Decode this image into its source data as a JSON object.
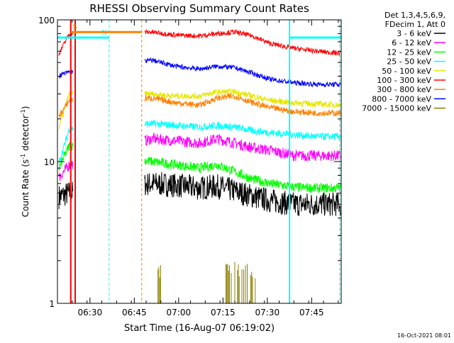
{
  "chart_data": {
    "type": "line",
    "title": "RHESSI Observing Summary Count Rates",
    "xlabel": "Start Time (16-Aug-07 06:19:02)",
    "ylabel": "Count Rate (s",
    "ylabel_sup": "-1",
    "ylabel_tail": " detector",
    "ylabel_close": ")",
    "x_unit": "minutes after 06:19:02",
    "xlim": [
      0,
      96
    ],
    "ylim": [
      1,
      100
    ],
    "yscale": "log",
    "x_ticks": [
      {
        "x": 11,
        "label": "06:30"
      },
      {
        "x": 26,
        "label": "06:45"
      },
      {
        "x": 41,
        "label": "07:00"
      },
      {
        "x": 56,
        "label": "07:15"
      },
      {
        "x": 71,
        "label": "07:30"
      },
      {
        "x": 86,
        "label": "07:45"
      }
    ],
    "y_ticks": [
      {
        "y": 1,
        "label": "1"
      },
      {
        "y": 10,
        "label": "10"
      },
      {
        "y": 100,
        "label": "100"
      }
    ],
    "legend": {
      "position": "right",
      "header": [
        "Det 1,3,4,5,6,9,",
        "FDecim 1, Att 0"
      ],
      "entries": [
        {
          "name": "3 - 6 keV",
          "color": "#000000"
        },
        {
          "name": "6 - 12 keV",
          "color": "#ff00ff"
        },
        {
          "name": "12 - 25 keV",
          "color": "#00ff00"
        },
        {
          "name": "25 - 50 keV",
          "color": "#00ffff"
        },
        {
          "name": "50 - 100 keV",
          "color": "#e6e600"
        },
        {
          "name": "100 - 300 keV",
          "color": "#ff0000"
        },
        {
          "name": "300 - 800 keV",
          "color": "#ff8000"
        },
        {
          "name": "800 - 7000 keV",
          "color": "#0000ff"
        },
        {
          "name": "7000 - 15000 keV",
          "color": "#8b8000"
        }
      ]
    },
    "series": [
      {
        "name": "3 - 6 keV",
        "color": "#000000",
        "points": [
          [
            0,
            5.6
          ],
          [
            4,
            6.0
          ],
          [
            32,
            7.0
          ],
          [
            40,
            6.8
          ],
          [
            48,
            6.5
          ],
          [
            54,
            6.7
          ],
          [
            60,
            6.2
          ],
          [
            66,
            5.7
          ],
          [
            72,
            5.3
          ],
          [
            80,
            5.0
          ],
          [
            88,
            5.0
          ],
          [
            96,
            5.0
          ]
        ],
        "noise": 0.2
      },
      {
        "name": "6 - 12 keV",
        "color": "#ff00ff",
        "points": [
          [
            0,
            7.5
          ],
          [
            4,
            9.5
          ],
          [
            32,
            14.5
          ],
          [
            40,
            14.0
          ],
          [
            48,
            13.5
          ],
          [
            54,
            14.5
          ],
          [
            60,
            13.5
          ],
          [
            66,
            12.5
          ],
          [
            72,
            12.0
          ],
          [
            80,
            11.0
          ],
          [
            88,
            11.0
          ],
          [
            96,
            11.0
          ]
        ],
        "noise": 0.09
      },
      {
        "name": "12 - 25 keV",
        "color": "#00ff00",
        "points": [
          [
            0,
            8.5
          ],
          [
            4,
            13.0
          ],
          [
            32,
            10.0
          ],
          [
            40,
            9.5
          ],
          [
            48,
            9.0
          ],
          [
            54,
            9.5
          ],
          [
            60,
            8.5
          ],
          [
            66,
            7.5
          ],
          [
            72,
            7.0
          ],
          [
            80,
            6.6
          ],
          [
            88,
            6.5
          ],
          [
            96,
            6.5
          ]
        ],
        "noise": 0.08
      },
      {
        "name": "25 - 50 keV",
        "color": "#00ffff",
        "points": [
          [
            0,
            9.0
          ],
          [
            4,
            17.0
          ],
          [
            32,
            18.5
          ],
          [
            40,
            18.0
          ],
          [
            48,
            17.5
          ],
          [
            54,
            18.0
          ],
          [
            60,
            17.5
          ],
          [
            66,
            16.5
          ],
          [
            72,
            16.0
          ],
          [
            80,
            15.5
          ],
          [
            88,
            15.0
          ],
          [
            96,
            15.0
          ]
        ],
        "noise": 0.06
      },
      {
        "name": "50 - 100 keV",
        "color": "#e6e600",
        "points": [
          [
            0,
            16
          ],
          [
            4,
            30
          ],
          [
            32,
            30
          ],
          [
            40,
            29
          ],
          [
            48,
            29
          ],
          [
            54,
            31
          ],
          [
            60,
            31
          ],
          [
            66,
            29
          ],
          [
            72,
            27
          ],
          [
            80,
            26
          ],
          [
            88,
            25.5
          ],
          [
            96,
            25
          ]
        ],
        "noise": 0.05
      },
      {
        "name": "100 - 300 keV",
        "color": "#ff0000",
        "points": [
          [
            0,
            55
          ],
          [
            4,
            80
          ],
          [
            32,
            82
          ],
          [
            40,
            78
          ],
          [
            48,
            77
          ],
          [
            54,
            80
          ],
          [
            60,
            82
          ],
          [
            66,
            77
          ],
          [
            72,
            68
          ],
          [
            80,
            63
          ],
          [
            88,
            60
          ],
          [
            96,
            58
          ]
        ],
        "noise": 0.04
      },
      {
        "name": "300 - 800 keV",
        "color": "#ff8000",
        "points": [
          [
            0,
            20
          ],
          [
            4,
            27
          ],
          [
            32,
            28
          ],
          [
            40,
            26
          ],
          [
            48,
            25
          ],
          [
            54,
            28
          ],
          [
            60,
            29
          ],
          [
            66,
            26
          ],
          [
            72,
            24
          ],
          [
            80,
            22.5
          ],
          [
            88,
            22
          ],
          [
            96,
            22
          ]
        ],
        "noise": 0.05
      },
      {
        "name": "800 - 7000 keV",
        "color": "#0000ff",
        "points": [
          [
            0,
            40
          ],
          [
            4,
            43
          ],
          [
            32,
            52
          ],
          [
            40,
            47
          ],
          [
            48,
            45
          ],
          [
            54,
            47
          ],
          [
            60,
            46
          ],
          [
            66,
            42
          ],
          [
            72,
            38
          ],
          [
            80,
            36
          ],
          [
            88,
            35
          ],
          [
            96,
            35
          ]
        ],
        "noise": 0.04
      }
    ],
    "spikes": {
      "name": "7000 - 15000 keV",
      "color": "#8b8000",
      "x_ranges": [
        [
          34,
          35
        ],
        [
          57,
          67
        ]
      ],
      "top": [
        1.5,
        2.0
      ]
    },
    "markers": {
      "vlines": [
        {
          "x": 4.5,
          "color": "#ff0000",
          "style": "solid"
        },
        {
          "x": 6.0,
          "color": "#ff0000",
          "style": "solid"
        },
        {
          "x": 17.5,
          "color": "#00ffff",
          "style": "dashed"
        },
        {
          "x": 28.5,
          "color": "#ff8000",
          "style": "dashed"
        },
        {
          "x": 78.5,
          "color": "#00ffff",
          "style": "solid"
        },
        {
          "x": 95.5,
          "color": "#00ffff",
          "style": "dashed"
        }
      ],
      "hbars": [
        {
          "x0": 0,
          "x1": 17.5,
          "y": 75,
          "color": "#00ffff",
          "label": "N"
        },
        {
          "x0": 4.5,
          "x1": 28.5,
          "y": 82,
          "color": "#ff8000",
          "label": "S"
        },
        {
          "x0": 78.5,
          "x1": 96,
          "y": 75,
          "color": "#00ffff",
          "label": ""
        }
      ]
    }
  },
  "footer_date": "16-Oct-2021 08:01"
}
